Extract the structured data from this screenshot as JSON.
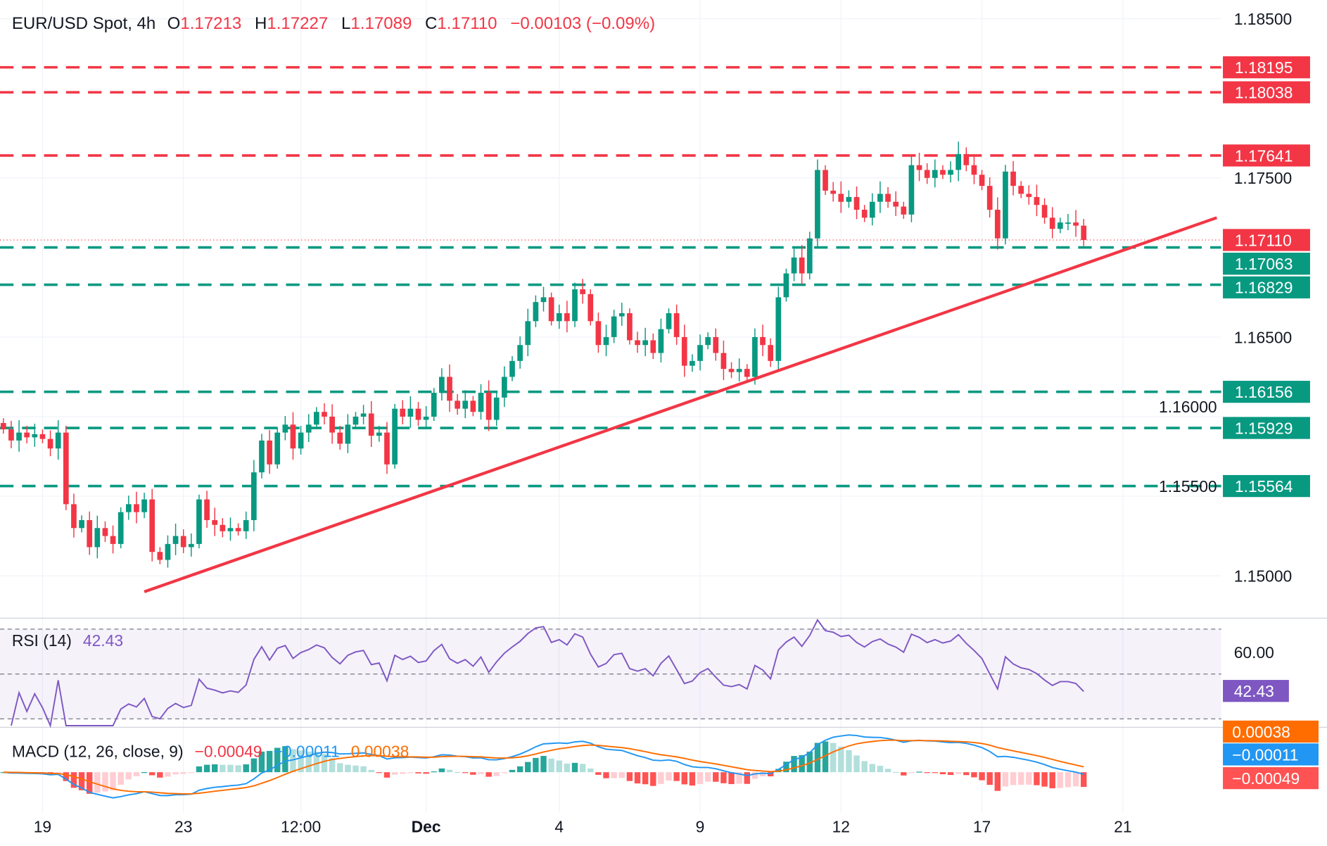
{
  "header": {
    "symbol": "EUR/USD Spot, 4h",
    "o_label": "O",
    "o": "1.17213",
    "h_label": "H",
    "h": "1.17227",
    "l_label": "L",
    "l": "1.17089",
    "c_label": "C",
    "c": "1.17110",
    "change": "−0.00103 (−0.09%)"
  },
  "rsi": {
    "label": "RSI (14)",
    "value": "42.43",
    "level_label": "60.00",
    "levels": [
      70,
      50,
      30
    ]
  },
  "macd": {
    "label": "MACD (12, 26, close, 9)",
    "hist": "−0.00049",
    "macd": "−0.00011",
    "signal": "0.00038"
  },
  "colors": {
    "up": "#089981",
    "down": "#f23645",
    "macd": "#2196f3",
    "signal": "#ff6d00",
    "rsi": "#7e57c2"
  },
  "chart_data": {
    "type": "candlestick",
    "timeframe": "4h",
    "x_ticks": [
      {
        "label": "19",
        "candle": 5
      },
      {
        "label": "23",
        "candle": 23
      },
      {
        "label": "12:00",
        "candle": 38
      },
      {
        "label": "Dec",
        "candle": 54,
        "bold": true
      },
      {
        "label": "4",
        "candle": 71
      },
      {
        "label": "9",
        "candle": 89
      },
      {
        "label": "12",
        "candle": 107
      },
      {
        "label": "17",
        "candle": 125
      },
      {
        "label": "21",
        "candle": 143
      }
    ],
    "y_ticks": [
      "1.18500",
      "1.17500",
      "1.16500",
      "1.16000",
      "1.15500",
      "1.15000"
    ],
    "ylim": [
      1.1475,
      1.1862
    ],
    "close": [
      1.1592,
      1.1585,
      1.159,
      1.1587,
      1.1589,
      1.1586,
      1.158,
      1.159,
      1.1545,
      1.153,
      1.1535,
      1.1518,
      1.153,
      1.1525,
      1.152,
      1.154,
      1.1545,
      1.154,
      1.1548,
      1.1515,
      1.151,
      1.152,
      1.1525,
      1.1518,
      1.152,
      1.1548,
      1.1535,
      1.1532,
      1.1528,
      1.153,
      1.1528,
      1.1535,
      1.1565,
      1.1585,
      1.157,
      1.159,
      1.1595,
      1.158,
      1.159,
      1.1595,
      1.1603,
      1.16,
      1.159,
      1.1583,
      1.1595,
      1.16,
      1.1602,
      1.1588,
      1.159,
      1.157,
      1.1605,
      1.16,
      1.1605,
      1.1598,
      1.16,
      1.1615,
      1.1625,
      1.161,
      1.1605,
      1.161,
      1.1603,
      1.1615,
      1.1598,
      1.1612,
      1.1625,
      1.1635,
      1.1645,
      1.166,
      1.1672,
      1.1675,
      1.166,
      1.1665,
      1.166,
      1.168,
      1.1677,
      1.166,
      1.1645,
      1.165,
      1.1663,
      1.1665,
      1.1648,
      1.1645,
      1.1648,
      1.164,
      1.1655,
      1.1665,
      1.165,
      1.1632,
      1.1635,
      1.1645,
      1.165,
      1.164,
      1.163,
      1.1628,
      1.163,
      1.1625,
      1.165,
      1.1645,
      1.1635,
      1.1675,
      1.169,
      1.17,
      1.169,
      1.1712,
      1.1755,
      1.1742,
      1.174,
      1.1735,
      1.1738,
      1.173,
      1.1725,
      1.1735,
      1.174,
      1.1735,
      1.1732,
      1.1727,
      1.1758,
      1.1755,
      1.175,
      1.1755,
      1.1752,
      1.1755,
      1.1765,
      1.1758,
      1.1752,
      1.1745,
      1.173,
      1.1712,
      1.1754,
      1.1745,
      1.174,
      1.1738,
      1.1733,
      1.1725,
      1.1718,
      1.1722,
      1.1722,
      1.172,
      1.1711
    ],
    "last_price": {
      "value": 1.1711,
      "label": "1.17110"
    },
    "resistance_levels": [
      {
        "value": 1.18195,
        "label": "1.18195"
      },
      {
        "value": 1.18038,
        "label": "1.18038"
      },
      {
        "value": 1.17641,
        "label": "1.17641"
      }
    ],
    "support_levels": [
      {
        "value": 1.17063,
        "label": "1.17063"
      },
      {
        "value": 1.16829,
        "label": "1.16829"
      },
      {
        "value": 1.16156,
        "label": "1.16156"
      },
      {
        "value": 1.15929,
        "label": "1.15929"
      },
      {
        "value": 1.15564,
        "label": "1.15564"
      }
    ],
    "trendline": [
      {
        "candle": 18,
        "price": 1.149
      },
      {
        "candle": 155,
        "price": 1.1725
      }
    ]
  }
}
